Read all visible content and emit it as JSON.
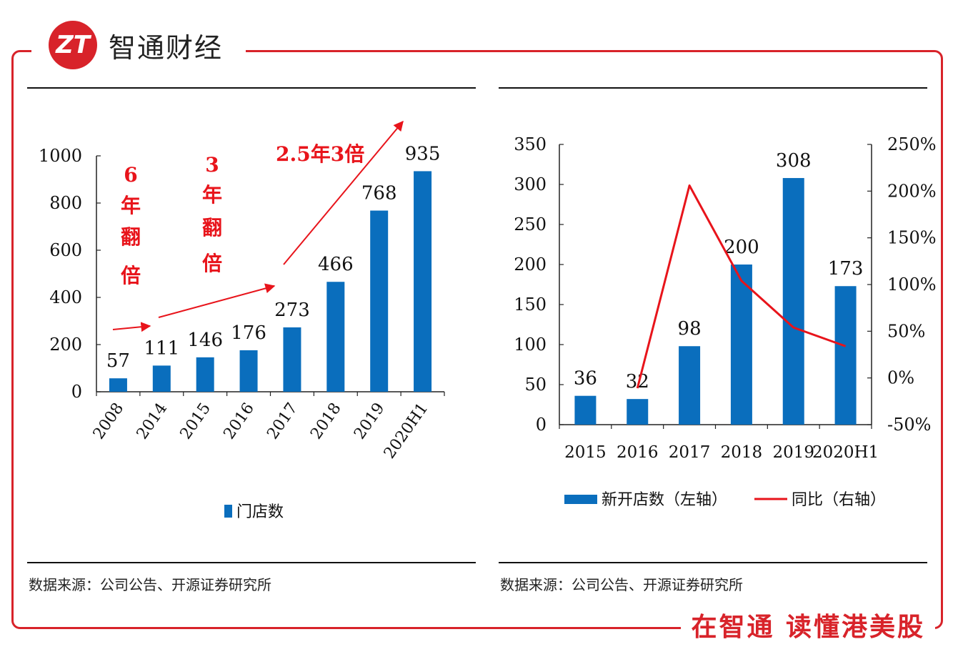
{
  "brand": {
    "logo_mark": "ZT",
    "name": "智通财经",
    "slogan": "在智通  读懂港美股"
  },
  "colors": {
    "bar": "#0a6ebd",
    "line": "#e8141b",
    "accent": "#d8232a"
  },
  "left_source": "数据来源：公司公告、开源证券研究所",
  "right_source": "数据来源：公司公告、开源证券研究所",
  "chart_data": [
    {
      "type": "bar",
      "categories": [
        "2008",
        "2014",
        "2015",
        "2016",
        "2017",
        "2018",
        "2019",
        "2020H1"
      ],
      "series": [
        {
          "name": "门店数",
          "values": [
            57,
            111,
            146,
            176,
            273,
            466,
            768,
            935
          ]
        }
      ],
      "ylim": [
        0,
        1000
      ],
      "yticks": [
        "0",
        "200",
        "400",
        "600",
        "800",
        "1000"
      ],
      "legend": "门店数",
      "annotations": [
        {
          "text_lines": [
            "6",
            "年",
            "翻",
            "倍"
          ]
        },
        {
          "text_lines": [
            "3",
            "年",
            "翻",
            "倍"
          ]
        },
        {
          "text": "2.5年3倍"
        }
      ]
    },
    {
      "type": "bar+line",
      "categories": [
        "2015",
        "2016",
        "2017",
        "2018",
        "2019",
        "2020H1"
      ],
      "series": [
        {
          "name": "新开店数（左轴）",
          "type": "bar",
          "values": [
            36,
            32,
            98,
            200,
            308,
            173
          ]
        },
        {
          "name": "同比（右轴）",
          "type": "line",
          "values_pct": [
            null,
            -11,
            206,
            104,
            54,
            34
          ]
        }
      ],
      "ylim_left": [
        0,
        350
      ],
      "yticks_left": [
        "0",
        "50",
        "100",
        "150",
        "200",
        "250",
        "300",
        "350"
      ],
      "ylim_right_pct": [
        -50,
        250
      ],
      "yticks_right": [
        "-50%",
        "0%",
        "50%",
        "100%",
        "150%",
        "200%",
        "250%"
      ]
    }
  ]
}
